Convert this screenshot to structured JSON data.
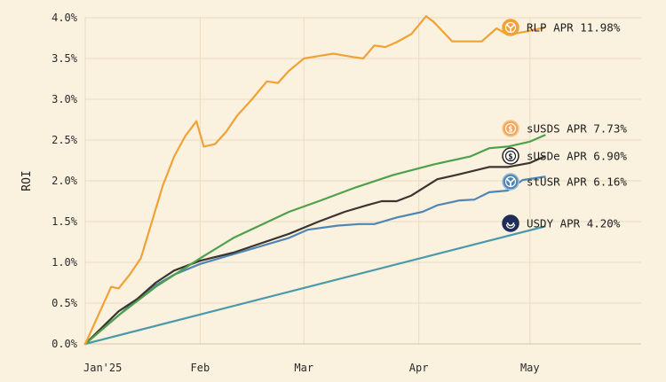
{
  "chart_data": {
    "type": "line",
    "ylabel": "ROI",
    "xlabel": "",
    "title": "",
    "ylim": [
      0,
      4.0
    ],
    "xlim": [
      "2025-01-01",
      "2025-05-31"
    ],
    "y_ticks": [
      0,
      0.5,
      1.0,
      1.5,
      2.0,
      2.5,
      3.0,
      3.5,
      4.0
    ],
    "y_tick_labels": [
      "0.0%",
      "0.5%",
      "1.0%",
      "1.5%",
      "2.0%",
      "2.5%",
      "3.0%",
      "3.5%",
      "4.0%"
    ],
    "x_ticks": [
      "2025-01-01",
      "2025-02-01",
      "2025-03-01",
      "2025-04-01",
      "2025-05-01"
    ],
    "x_tick_labels": [
      "Jan'25",
      "Feb",
      "Mar",
      "Apr",
      "May"
    ],
    "grid": true,
    "legend_position": "right",
    "series": [
      {
        "name": "RLP",
        "label": "RLP APR 11.98%",
        "color": "#f0a236",
        "icon": "rlp-icon",
        "x": [
          "2025-01-01",
          "2025-01-05",
          "2025-01-08",
          "2025-01-10",
          "2025-01-13",
          "2025-01-16",
          "2025-01-19",
          "2025-01-22",
          "2025-01-25",
          "2025-01-28",
          "2025-01-31",
          "2025-02-02",
          "2025-02-05",
          "2025-02-08",
          "2025-02-11",
          "2025-02-15",
          "2025-02-19",
          "2025-02-22",
          "2025-02-25",
          "2025-03-01",
          "2025-03-05",
          "2025-03-09",
          "2025-03-14",
          "2025-03-17",
          "2025-03-20",
          "2025-03-23",
          "2025-03-26",
          "2025-03-30",
          "2025-04-03",
          "2025-04-05",
          "2025-04-10",
          "2025-04-13",
          "2025-04-18",
          "2025-04-22",
          "2025-04-25",
          "2025-04-30",
          "2025-05-05"
        ],
        "values": [
          0.0,
          0.4,
          0.7,
          0.68,
          0.85,
          1.05,
          1.5,
          1.95,
          2.3,
          2.55,
          2.73,
          2.42,
          2.45,
          2.6,
          2.8,
          3.0,
          3.22,
          3.2,
          3.35,
          3.5,
          3.53,
          3.56,
          3.52,
          3.5,
          3.66,
          3.64,
          3.7,
          3.8,
          4.02,
          3.95,
          3.71,
          3.71,
          3.71,
          3.87,
          3.79,
          3.83,
          3.88
        ]
      },
      {
        "name": "sUSDS",
        "label": "sUSDS APR 7.73%",
        "color": "#4ea04a",
        "icon": "susds-icon",
        "x": [
          "2025-01-01",
          "2025-01-10",
          "2025-01-20",
          "2025-02-01",
          "2025-02-10",
          "2025-02-25",
          "2025-03-05",
          "2025-03-15",
          "2025-03-25",
          "2025-04-05",
          "2025-04-15",
          "2025-04-20",
          "2025-04-25",
          "2025-05-01",
          "2025-05-05"
        ],
        "values": [
          0.0,
          0.35,
          0.7,
          1.05,
          1.3,
          1.62,
          1.75,
          1.92,
          2.07,
          2.2,
          2.3,
          2.4,
          2.42,
          2.48,
          2.56
        ]
      },
      {
        "name": "sUSDe",
        "label": "sUSDe APR 6.90%",
        "color": "#3a3530",
        "icon": "susde-icon",
        "x": [
          "2025-01-01",
          "2025-01-10",
          "2025-01-15",
          "2025-01-20",
          "2025-01-25",
          "2025-02-01",
          "2025-02-10",
          "2025-02-25",
          "2025-03-05",
          "2025-03-12",
          "2025-03-18",
          "2025-03-22",
          "2025-03-26",
          "2025-03-30",
          "2025-04-06",
          "2025-04-12",
          "2025-04-20",
          "2025-04-25",
          "2025-05-01",
          "2025-05-05"
        ],
        "values": [
          0.0,
          0.4,
          0.55,
          0.75,
          0.9,
          1.02,
          1.12,
          1.35,
          1.5,
          1.62,
          1.7,
          1.75,
          1.75,
          1.82,
          2.02,
          2.08,
          2.17,
          2.17,
          2.22,
          2.3
        ]
      },
      {
        "name": "stUSR",
        "label": "stUSR APR 6.16%",
        "color": "#4f86b5",
        "icon": "stusr-icon",
        "x": [
          "2025-01-01",
          "2025-01-10",
          "2025-01-15",
          "2025-01-20",
          "2025-01-25",
          "2025-02-01",
          "2025-02-10",
          "2025-02-25",
          "2025-03-02",
          "2025-03-10",
          "2025-03-16",
          "2025-03-20",
          "2025-03-26",
          "2025-04-02",
          "2025-04-06",
          "2025-04-12",
          "2025-04-16",
          "2025-04-20",
          "2025-04-25",
          "2025-04-29",
          "2025-05-05"
        ],
        "values": [
          0.0,
          0.35,
          0.55,
          0.72,
          0.85,
          0.98,
          1.1,
          1.3,
          1.4,
          1.45,
          1.47,
          1.47,
          1.55,
          1.62,
          1.7,
          1.76,
          1.77,
          1.86,
          1.88,
          2.01,
          2.05
        ]
      },
      {
        "name": "USDY",
        "label": "USDY APR 4.20%",
        "color": "#4b9aaa",
        "icon": "usdy-icon",
        "x": [
          "2025-01-01",
          "2025-05-05"
        ],
        "values": [
          0.0,
          1.44
        ]
      }
    ]
  }
}
